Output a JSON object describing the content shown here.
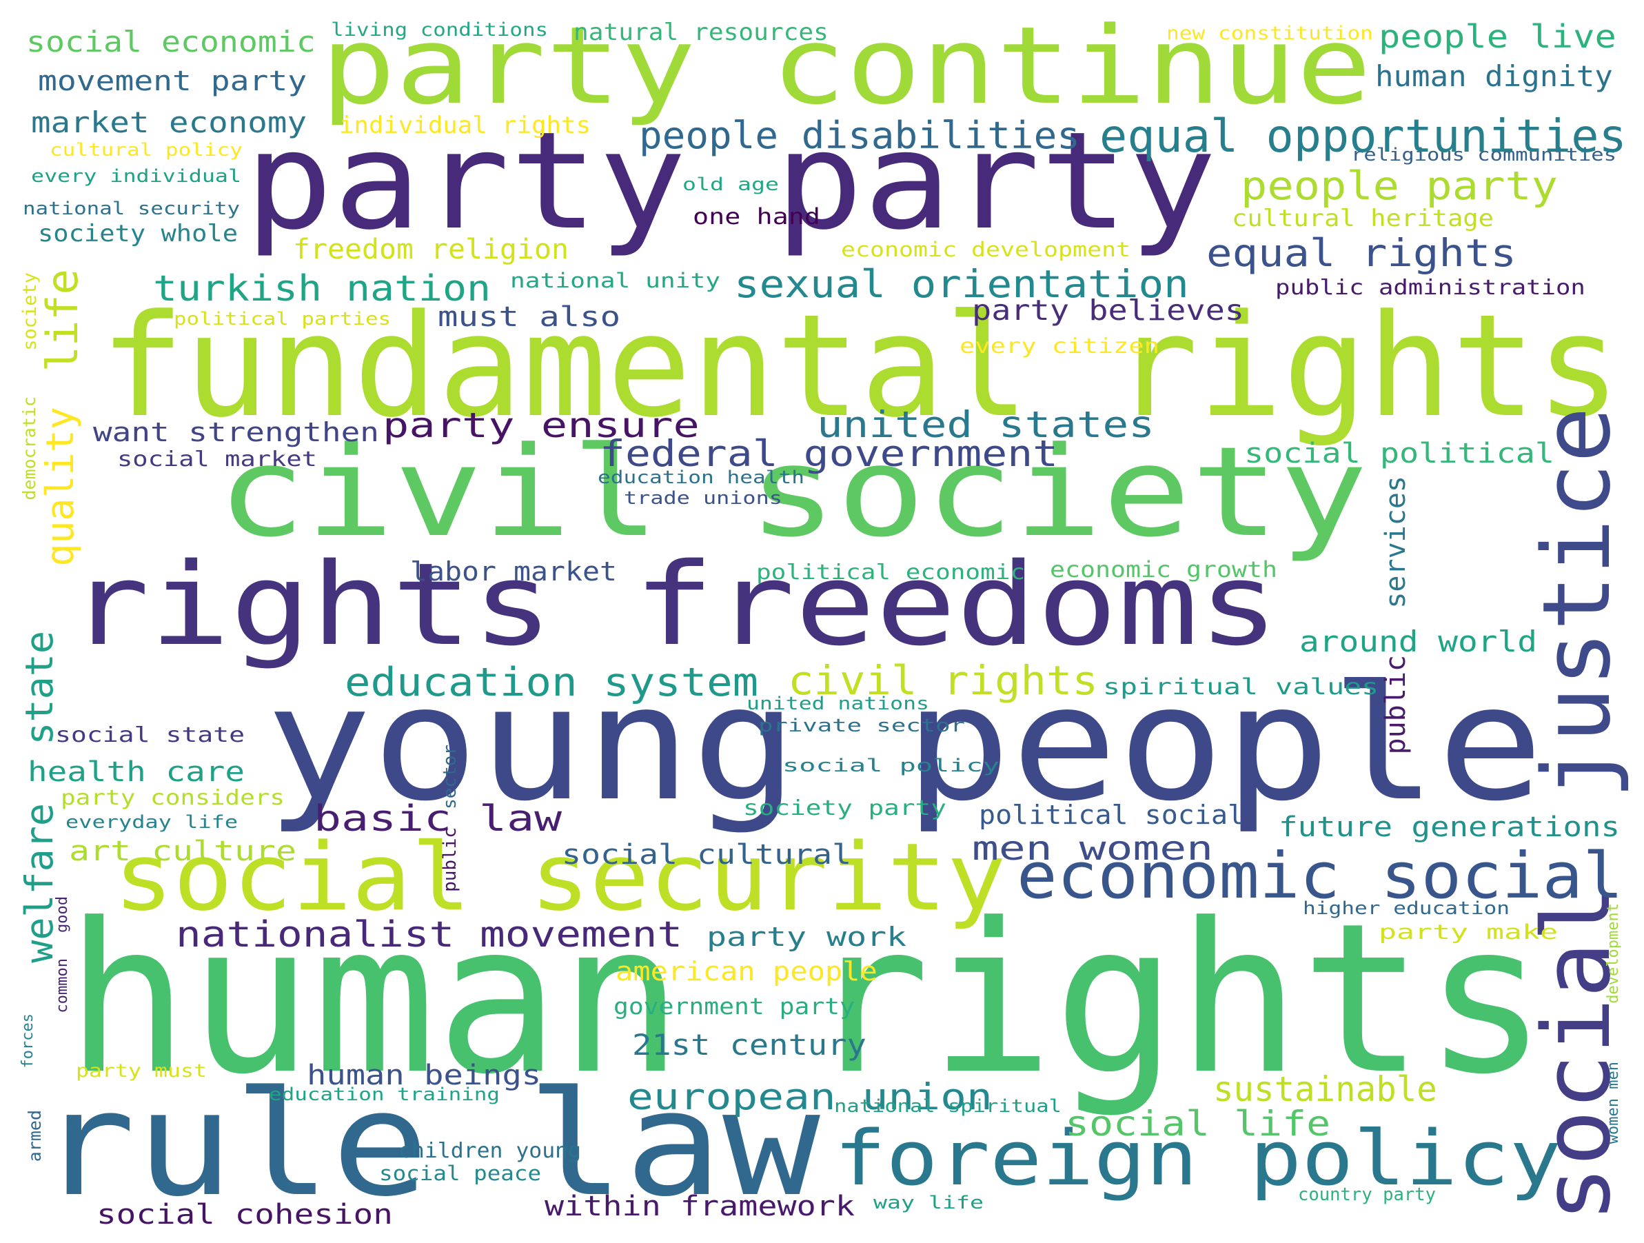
{
  "words": [
    {
      "text": "human rights",
      "color": "#48c16e"
    },
    {
      "text": "party continue",
      "color": "#a0da39"
    },
    {
      "text": "party party",
      "color": "#472a7a"
    },
    {
      "text": "fundamental rights",
      "color": "#addc30"
    },
    {
      "text": "civil society",
      "color": "#5ec962"
    },
    {
      "text": "rights freedoms",
      "color": "#46337e"
    },
    {
      "text": "young people",
      "color": "#3e4989"
    },
    {
      "text": "rule law",
      "color": "#31688e"
    },
    {
      "text": "foreign policy",
      "color": "#2a788e"
    },
    {
      "text": "social security",
      "color": "#bddf26"
    },
    {
      "text": "justice",
      "color": "#3e4a89"
    },
    {
      "text": "social",
      "color": "#433e85"
    },
    {
      "text": "economic social",
      "color": "#39568c"
    },
    {
      "text": "social economic",
      "color": "#5ec962"
    },
    {
      "text": "movement party",
      "color": "#31688e"
    },
    {
      "text": "market economy",
      "color": "#2a788e"
    },
    {
      "text": "cultural policy",
      "color": "#fde725"
    },
    {
      "text": "every individual",
      "color": "#1fa188"
    },
    {
      "text": "national security",
      "color": "#2c728e"
    },
    {
      "text": "society whole",
      "color": "#25848e"
    },
    {
      "text": "living conditions",
      "color": "#22a884"
    },
    {
      "text": "natural resources",
      "color": "#35b779"
    },
    {
      "text": "individual rights",
      "color": "#fde725"
    },
    {
      "text": "new constitution",
      "color": "#fde725"
    },
    {
      "text": "people live",
      "color": "#2db27d"
    },
    {
      "text": "human dignity",
      "color": "#2c728e"
    },
    {
      "text": "religious communities",
      "color": "#35608d"
    },
    {
      "text": "people disabilities",
      "color": "#31688e"
    },
    {
      "text": "equal opportunities",
      "color": "#277f8e"
    },
    {
      "text": "people party",
      "color": "#addc30"
    },
    {
      "text": "cultural heritage",
      "color": "#c2df23"
    },
    {
      "text": "old age",
      "color": "#22a884"
    },
    {
      "text": "one hand",
      "color": "#440154"
    },
    {
      "text": "freedom religion",
      "color": "#d2e21b"
    },
    {
      "text": "economic development",
      "color": "#d8e219"
    },
    {
      "text": "equal rights",
      "color": "#3b528b"
    },
    {
      "text": "turkish nation",
      "color": "#20a486"
    },
    {
      "text": "national unity",
      "color": "#22a884"
    },
    {
      "text": "sexual orientation",
      "color": "#23898e"
    },
    {
      "text": "public administration",
      "color": "#481a6c"
    },
    {
      "text": "party believes",
      "color": "#472d7b"
    },
    {
      "text": "must also",
      "color": "#3b528b"
    },
    {
      "text": "political parties",
      "color": "#d8e219"
    },
    {
      "text": "every citizen",
      "color": "#fde725"
    },
    {
      "text": "life",
      "color": "#c2df23"
    },
    {
      "text": "society",
      "color": "#d8e219"
    },
    {
      "text": "quality",
      "color": "#fde725"
    },
    {
      "text": "democratic",
      "color": "#bddf26"
    },
    {
      "text": "want strengthen",
      "color": "#414487"
    },
    {
      "text": "party ensure",
      "color": "#471365"
    },
    {
      "text": "united states",
      "color": "#2a788e"
    },
    {
      "text": "federal government",
      "color": "#3e4989"
    },
    {
      "text": "social market",
      "color": "#443983"
    },
    {
      "text": "education health",
      "color": "#2c728e"
    },
    {
      "text": "trade unions",
      "color": "#3b528b"
    },
    {
      "text": "social political",
      "color": "#35b779"
    },
    {
      "text": "services",
      "color": "#2a788e"
    },
    {
      "text": "public",
      "color": "#481a6c"
    },
    {
      "text": "labor market",
      "color": "#3b528b"
    },
    {
      "text": "political economic",
      "color": "#2db27d"
    },
    {
      "text": "economic growth",
      "color": "#54c568"
    },
    {
      "text": "around world",
      "color": "#20a486"
    },
    {
      "text": "state",
      "color": "#1fa188"
    },
    {
      "text": "education system",
      "color": "#1f9a8a"
    },
    {
      "text": "civil rights",
      "color": "#c2df23"
    },
    {
      "text": "spiritual values",
      "color": "#1e9b8a"
    },
    {
      "text": "united nations",
      "color": "#1f9e89"
    },
    {
      "text": "private sector",
      "color": "#2c728e"
    },
    {
      "text": "social state",
      "color": "#443983"
    },
    {
      "text": "welfare",
      "color": "#1f9e89"
    },
    {
      "text": "health care",
      "color": "#1fa188"
    },
    {
      "text": "social policy",
      "color": "#26828e"
    },
    {
      "text": "party considers",
      "color": "#b5de2b"
    },
    {
      "text": "everyday life",
      "color": "#25848e"
    },
    {
      "text": "sector",
      "color": "#31688e"
    },
    {
      "text": "basic law",
      "color": "#481f70"
    },
    {
      "text": "society party",
      "color": "#29af7f"
    },
    {
      "text": "political social",
      "color": "#375a8c"
    },
    {
      "text": "future generations",
      "color": "#21918c"
    },
    {
      "text": "art culture",
      "color": "#addc30"
    },
    {
      "text": "men women",
      "color": "#3d4e8a"
    },
    {
      "text": "social cultural",
      "color": "#33628d"
    },
    {
      "text": "public",
      "color": "#471365"
    },
    {
      "text": "good",
      "color": "#482475"
    },
    {
      "text": "nationalist movement",
      "color": "#482878"
    },
    {
      "text": "party work",
      "color": "#277f8e"
    },
    {
      "text": "higher education",
      "color": "#31688e"
    },
    {
      "text": "party make",
      "color": "#d2e21b"
    },
    {
      "text": "development",
      "color": "#a0da39"
    },
    {
      "text": "american people",
      "color": "#fde725"
    },
    {
      "text": "common",
      "color": "#482475"
    },
    {
      "text": "government party",
      "color": "#29af7f"
    },
    {
      "text": "21st century",
      "color": "#2a788e"
    },
    {
      "text": "forces",
      "color": "#26828e"
    },
    {
      "text": "party must",
      "color": "#d8e219"
    },
    {
      "text": "human beings",
      "color": "#3b528b"
    },
    {
      "text": "european union",
      "color": "#23898e"
    },
    {
      "text": "women men",
      "color": "#2a788e"
    },
    {
      "text": "sustainable",
      "color": "#bddf26"
    },
    {
      "text": "education training",
      "color": "#20a486"
    },
    {
      "text": "national spiritual",
      "color": "#1fa188"
    },
    {
      "text": "social life",
      "color": "#54c568"
    },
    {
      "text": "armed",
      "color": "#31688e"
    },
    {
      "text": "children young",
      "color": "#2c728e"
    },
    {
      "text": "social peace",
      "color": "#23898e"
    },
    {
      "text": "within framework",
      "color": "#481a6c"
    },
    {
      "text": "way life",
      "color": "#1fa188"
    },
    {
      "text": "country party",
      "color": "#2db27d"
    },
    {
      "text": "social cohesion",
      "color": "#471365"
    }
  ]
}
